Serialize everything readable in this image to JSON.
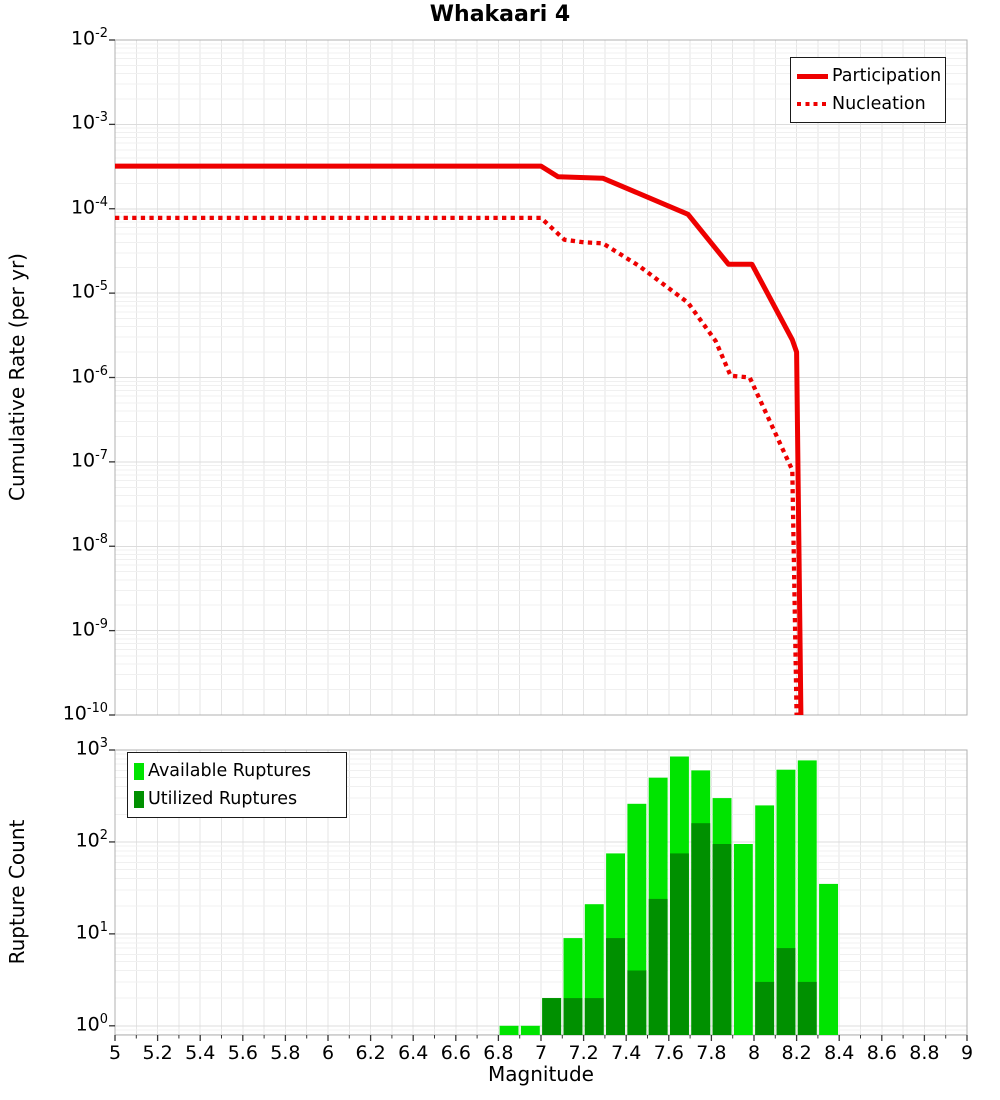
{
  "title": "Whakaari 4",
  "colors": {
    "line_red": "#ee0000",
    "available_green": "#00e400",
    "utilized_green": "#009000",
    "grid_minor": "#f0f0f0",
    "grid_major": "#dcdcdc",
    "grid_vertical": "#e5e5e5",
    "spine": "#b0b0b0",
    "tick": "#333333"
  },
  "chart_data": [
    {
      "type": "line",
      "title": "Whakaari 4",
      "ylabel": "Cumulative Rate (per yr)",
      "xlabel": "",
      "xlim": [
        5,
        9
      ],
      "ylim": [
        1e-10,
        0.01
      ],
      "yscale": "log",
      "grid": true,
      "legend_position": "upper right",
      "yticks_exponents": [
        -2,
        -3,
        -4,
        -5,
        -6,
        -7,
        -8,
        -9,
        -10
      ],
      "series": [
        {
          "name": "Participation",
          "style": "solid",
          "points": [
            [
              5.0,
              0.00032
            ],
            [
              7.0,
              0.00032
            ],
            [
              7.08,
              0.00024
            ],
            [
              7.29,
              0.00023
            ],
            [
              7.69,
              8.6e-05
            ],
            [
              7.88,
              2.2e-05
            ],
            [
              7.99,
              2.2e-05
            ],
            [
              8.18,
              2.8e-06
            ],
            [
              8.2,
              2e-06
            ],
            [
              8.22,
              1e-10
            ]
          ]
        },
        {
          "name": "Nucleation",
          "style": "dotted",
          "points": [
            [
              5.0,
              7.8e-05
            ],
            [
              7.0,
              7.8e-05
            ],
            [
              7.11,
              4.3e-05
            ],
            [
              7.2,
              4e-05
            ],
            [
              7.29,
              3.9e-05
            ],
            [
              7.46,
              2.1e-05
            ],
            [
              7.69,
              7.7e-06
            ],
            [
              7.82,
              2.7e-06
            ],
            [
              7.89,
              1.05e-06
            ],
            [
              7.98,
              1e-06
            ],
            [
              8.18,
              8e-08
            ],
            [
              8.2,
              1e-10
            ]
          ]
        }
      ]
    },
    {
      "type": "bar",
      "ylabel": "Rupture Count",
      "xlabel": "Magnitude",
      "xlim": [
        5,
        9
      ],
      "ylim": [
        0.8,
        1000
      ],
      "yscale": "log",
      "grid": true,
      "legend_position": "upper left",
      "yticks_exponents": [
        3,
        2,
        1,
        0
      ],
      "bin_width": 0.1,
      "bins_left_edge": [
        6.8,
        6.9,
        7.0,
        7.1,
        7.2,
        7.3,
        7.4,
        7.5,
        7.6,
        7.7,
        7.8,
        7.9,
        8.0,
        8.1,
        8.2,
        8.3
      ],
      "series": [
        {
          "name": "Available Ruptures",
          "values": [
            1,
            1,
            2,
            9,
            21,
            75,
            260,
            500,
            850,
            600,
            300,
            95,
            250,
            610,
            770,
            35
          ]
        },
        {
          "name": "Utilized Ruptures",
          "values": [
            0,
            0,
            2,
            2,
            2,
            9,
            4,
            24,
            75,
            160,
            95,
            0,
            3,
            7,
            3,
            0
          ]
        }
      ],
      "xticks": {
        "values": [
          5,
          5.2,
          5.4,
          5.6,
          5.8,
          6,
          6.2,
          6.4,
          6.6,
          6.8,
          7,
          7.2,
          7.4,
          7.6,
          7.8,
          8,
          8.2,
          8.4,
          8.6,
          8.8,
          9
        ],
        "labels": [
          "5",
          "5.2",
          "5.4",
          "5.6",
          "5.8",
          "6",
          "6.2",
          "6.4",
          "6.6",
          "6.8",
          "7",
          "7.2",
          "7.4",
          "7.6",
          "7.8",
          "8",
          "8.2",
          "8.4",
          "8.6",
          "8.8",
          "9"
        ]
      }
    }
  ]
}
